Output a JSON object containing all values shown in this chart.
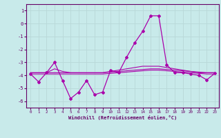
{
  "bg_color": "#c8eaea",
  "line_color": "#aa00aa",
  "grid_color": "#b8d8d8",
  "axis_color": "#660066",
  "xlabel": "Windchill (Refroidissement éolien,°C)",
  "xlabel_color": "#660066",
  "xlim": [
    -0.5,
    23.5
  ],
  "ylim": [
    -6.5,
    1.5
  ],
  "yticks": [
    1,
    0,
    -1,
    -2,
    -3,
    -4,
    -5,
    -6
  ],
  "xticks": [
    0,
    1,
    2,
    3,
    4,
    5,
    6,
    7,
    8,
    9,
    10,
    11,
    12,
    13,
    14,
    15,
    16,
    17,
    18,
    19,
    20,
    21,
    22,
    23
  ],
  "series_main": [
    -3.9,
    -4.5,
    -3.8,
    -3.0,
    -4.4,
    -5.8,
    -5.3,
    -4.4,
    -5.5,
    -5.3,
    -3.6,
    -3.8,
    -2.6,
    -1.5,
    -0.6,
    0.6,
    0.6,
    -3.2,
    -3.8,
    -3.8,
    -3.9,
    -4.0,
    -4.35,
    -3.85
  ],
  "series_smooth1": [
    -3.8,
    -3.8,
    -3.8,
    -3.5,
    -3.7,
    -3.8,
    -3.8,
    -3.8,
    -3.8,
    -3.8,
    -3.7,
    -3.6,
    -3.5,
    -3.4,
    -3.3,
    -3.3,
    -3.3,
    -3.4,
    -3.5,
    -3.6,
    -3.7,
    -3.8,
    -3.8,
    -3.8
  ],
  "series_smooth2": [
    -3.8,
    -3.8,
    -3.8,
    -3.8,
    -3.8,
    -3.8,
    -3.8,
    -3.8,
    -3.8,
    -3.8,
    -3.75,
    -3.7,
    -3.65,
    -3.6,
    -3.55,
    -3.5,
    -3.5,
    -3.55,
    -3.6,
    -3.65,
    -3.7,
    -3.75,
    -3.8,
    -3.8
  ],
  "series_smooth3": [
    -3.9,
    -3.9,
    -3.9,
    -3.9,
    -3.9,
    -3.9,
    -3.9,
    -3.9,
    -3.9,
    -3.9,
    -3.85,
    -3.8,
    -3.75,
    -3.7,
    -3.65,
    -3.6,
    -3.6,
    -3.65,
    -3.7,
    -3.75,
    -3.8,
    -3.85,
    -3.9,
    -3.9
  ]
}
